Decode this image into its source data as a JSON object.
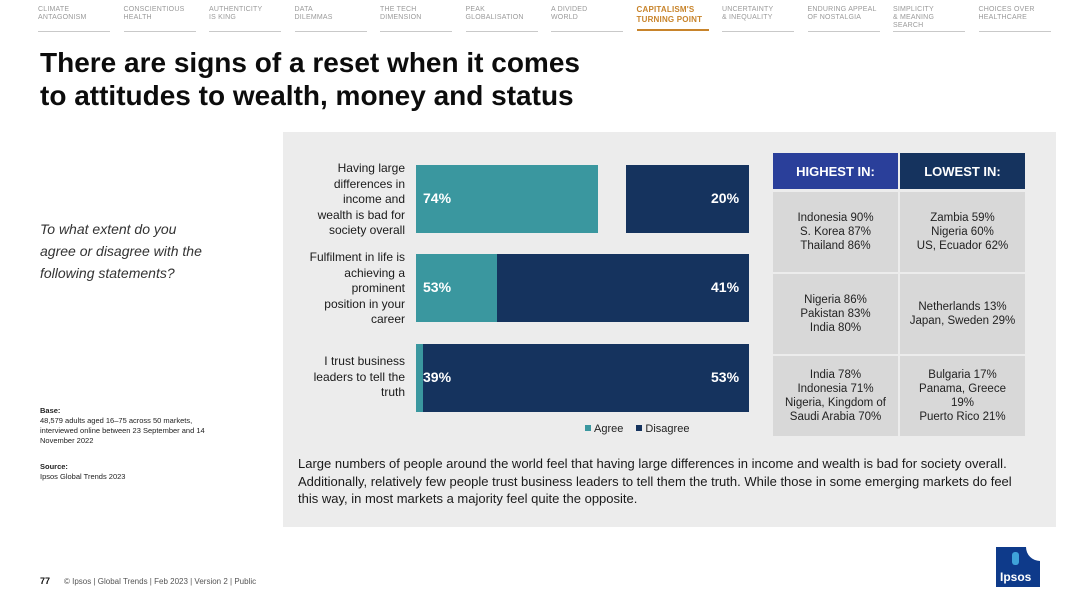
{
  "nav": {
    "items": [
      {
        "line1": "CLIMATE",
        "line2": "ANTAGONISM",
        "active": false
      },
      {
        "line1": "CONSCIENTIOUS",
        "line2": "HEALTH",
        "active": false
      },
      {
        "line1": "AUTHENTICITY",
        "line2": "IS KING",
        "active": false
      },
      {
        "line1": "DATA",
        "line2": "DILEMMAS",
        "active": false
      },
      {
        "line1": "THE TECH",
        "line2": "DIMENSION",
        "active": false
      },
      {
        "line1": "PEAK",
        "line2": "GLOBALISATION",
        "active": false
      },
      {
        "line1": "A DIVIDED",
        "line2": "WORLD",
        "active": false
      },
      {
        "line1": "CAPITALISM'S",
        "line2": "TURNING POINT",
        "active": true
      },
      {
        "line1": "UNCERTAINTY",
        "line2": "& INEQUALITY",
        "active": false
      },
      {
        "line1": "ENDURING APPEAL",
        "line2": "OF NOSTALGIA",
        "active": false
      },
      {
        "line1": "SIMPLICITY",
        "line2": "& MEANING SEARCH",
        "active": false
      },
      {
        "line1": "CHOICES OVER",
        "line2": "HEALTHCARE",
        "active": false
      }
    ],
    "active_color": "#c8842b"
  },
  "title": {
    "line1": "There are signs of a reset when it comes",
    "line2": "to attitudes to wealth, money and status"
  },
  "question": {
    "line1": "To what extent do you",
    "line2": "agree or disagree with the",
    "line3": "following statements?"
  },
  "base": {
    "label": "Base:",
    "line1": "48,579 adults aged 16–75 across 50 markets,",
    "line2": "interviewed online between 23 September and 14",
    "line3": "November 2022"
  },
  "source": {
    "label": "Source:",
    "text": "Ipsos Global Trends 2023"
  },
  "chart_data": {
    "type": "bar",
    "orientation": "horizontal",
    "stacked": false,
    "categories": [
      [
        "Having large",
        "differences in",
        "income and",
        "wealth is bad for",
        "society overall"
      ],
      [
        "Fulfilment in life is",
        "achieving a",
        "prominent",
        "position in your",
        "career"
      ],
      [
        "I trust business",
        "leaders to tell the",
        "truth"
      ]
    ],
    "series": [
      {
        "name": "Agree",
        "color": "#3a979f",
        "values": [
          74,
          53,
          39
        ],
        "labels": [
          "74%",
          "53%",
          "39%"
        ]
      },
      {
        "name": "Disagree",
        "color": "#15335e",
        "values": [
          20,
          41,
          53
        ],
        "labels": [
          "20%",
          "41%",
          "53%"
        ]
      }
    ],
    "xlim": [
      0,
      100
    ],
    "legend": "bottom",
    "grid": false
  },
  "table": {
    "header_highest": "HIGHEST IN:",
    "header_lowest": "LOWEST IN:",
    "header_color_highest": "#2a3f9a",
    "header_color_lowest": "#15335e",
    "rows": [
      {
        "highest": [
          "Indonesia 90%",
          "S. Korea 87%",
          "Thailand 86%"
        ],
        "lowest": [
          "Zambia 59%",
          "Nigeria 60%",
          "US, Ecuador 62%"
        ]
      },
      {
        "highest": [
          "Nigeria 86%",
          "Pakistan 83%",
          "India 80%"
        ],
        "lowest": [
          "Netherlands 13%",
          "Japan, Sweden 29%"
        ]
      },
      {
        "highest": [
          "India 78%",
          "Indonesia 71%",
          "Nigeria, Kingdom of",
          "Saudi Arabia 70%"
        ],
        "lowest": [
          "Bulgaria 17%",
          "Panama, Greece",
          "19%",
          "Puerto Rico 21%"
        ]
      }
    ]
  },
  "summary": "Large numbers of people around the world feel that having large differences in income and wealth is bad for society overall. Additionally, relatively few people trust business leaders to tell them the truth. While those in some emerging markets do feel this way, in most markets a majority feel quite the opposite.",
  "footer": {
    "page": "77",
    "text": "© Ipsos | Global Trends | Feb 2023 | Version 2 | Public"
  },
  "logo": {
    "text": "Ipsos"
  }
}
